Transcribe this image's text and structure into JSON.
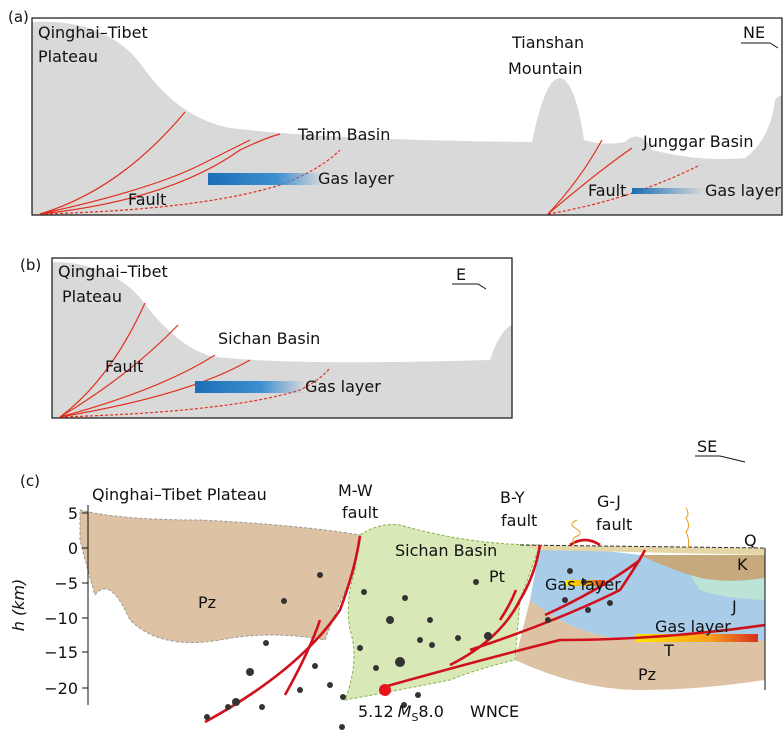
{
  "panel_a": {
    "label": "(a)",
    "direction": "NE",
    "plateau_line1": "Qinghai–Tibet",
    "plateau_line2": "Plateau",
    "mountain_line1": "Tianshan",
    "mountain_line2": "Mountain",
    "basin1": "Tarim Basin",
    "basin2": "Junggar Basin",
    "fault1": "Fault",
    "gas1": "Gas layer",
    "fault2": "Fault",
    "gas2": "Gas layer"
  },
  "panel_b": {
    "label": "(b)",
    "direction": "E",
    "plateau_line1": "Qinghai–Tibet",
    "plateau_line2": "Plateau",
    "basin": "Sichan Basin",
    "fault": "Fault",
    "gas": "Gas layer"
  },
  "panel_c": {
    "label": "(c)",
    "direction": "SE",
    "axis_label": "h (km)",
    "ticks": [
      "5",
      "0",
      "−5",
      "−10",
      "−15",
      "−20"
    ],
    "plateau": "Qinghai–Tibet Plateau",
    "mw_line1": "M-W",
    "mw_line2": "fault",
    "by_line1": "B-Y",
    "by_line2": "fault",
    "gj_line1": "G-J",
    "gj_line2": "fault",
    "basin": "Sichan Basin",
    "pt": "Pt",
    "gas1": "Gas layer",
    "gas2": "Gas layer",
    "q": "Q",
    "k": "K",
    "j": "J",
    "t": "T",
    "pz1": "Pz",
    "pz2": "Pz",
    "wnce": "WNCE",
    "event": {
      "date": "5.12",
      "symbol": "M",
      "subscript": "S",
      "magnitude": "8.0"
    }
  }
}
